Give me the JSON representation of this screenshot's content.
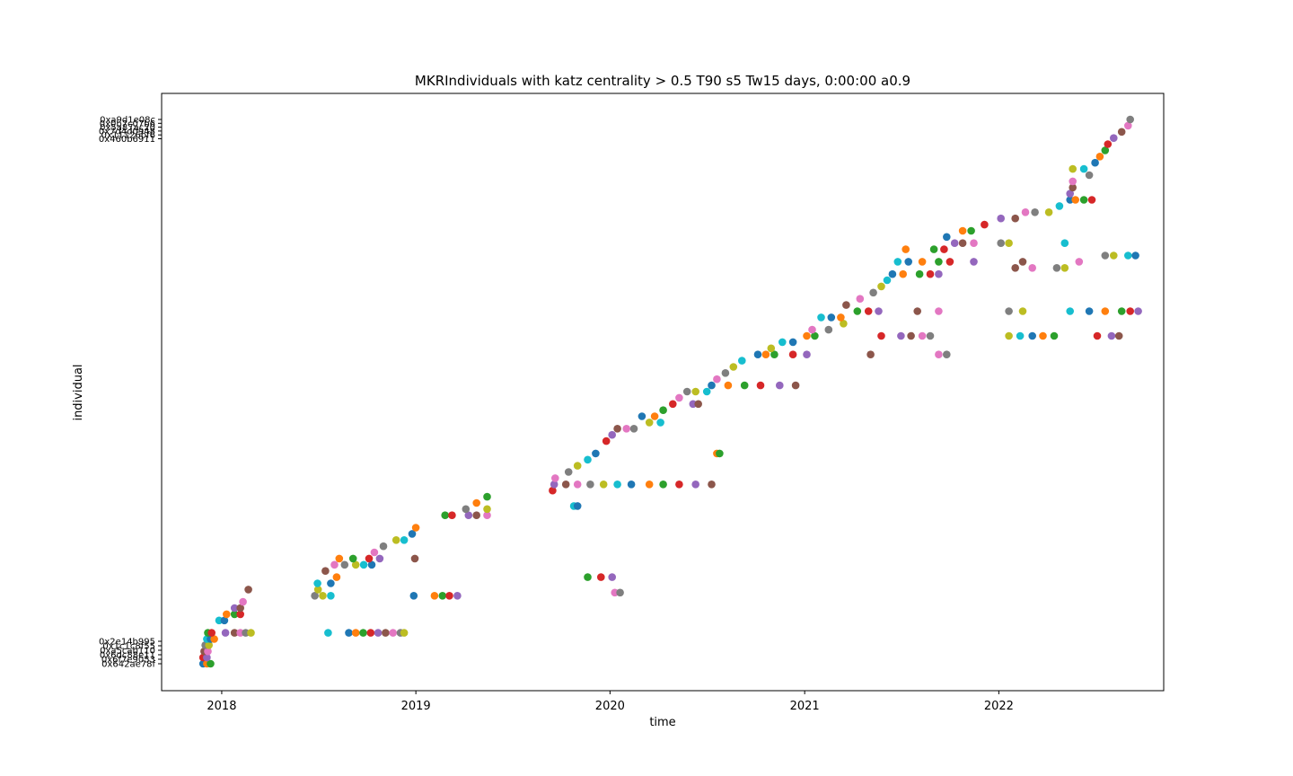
{
  "chart_data": {
    "type": "scatter",
    "title": "MKRIndividuals with katz centrality > 0.5 T90 s5 Tw15 days, 0:00:00 a0.9",
    "xlabel": "time",
    "ylabel": "individual",
    "xlim": [
      "2017-09-10",
      "2022-11-07"
    ],
    "x_ticks": [
      "2018",
      "2019",
      "2020",
      "2021",
      "2022"
    ],
    "grid": false,
    "legend": "none",
    "marker": "circle",
    "palette": [
      "#1f77b4",
      "#ff7f0e",
      "#2ca02c",
      "#d62728",
      "#9467bd",
      "#8c564b",
      "#e377c2",
      "#7f7f7f",
      "#bcbd22",
      "#17becf"
    ],
    "y_categories_bottom": [
      "0x642ae78f",
      "0x6f7e9053",
      "0x6dc88e11",
      "0xa5cab110",
      "0x1c1c8f55",
      "0x2e14b995"
    ],
    "y_categories_top": [
      "0xa9d1e08c",
      "0x0b7c07b6",
      "0x5a87ac20",
      "0x7d4d0948",
      "0x11126bf6",
      "0x460b6911"
    ],
    "points": [
      [
        "2017-11-27",
        0
      ],
      [
        "2017-12-04",
        0
      ],
      [
        "2017-12-11",
        0
      ],
      [
        "2017-11-27",
        1
      ],
      [
        "2017-12-04",
        1
      ],
      [
        "2017-11-29",
        2
      ],
      [
        "2017-12-06",
        2
      ],
      [
        "2017-12-01",
        3
      ],
      [
        "2017-12-08",
        3
      ],
      [
        "2017-12-04",
        4
      ],
      [
        "2017-12-11",
        4
      ],
      [
        "2017-12-18",
        4
      ],
      [
        "2017-12-06",
        5
      ],
      [
        "2017-12-13",
        5
      ],
      [
        "2018-01-08",
        5
      ],
      [
        "2018-01-25",
        5
      ],
      [
        "2018-02-05",
        5
      ],
      [
        "2018-02-15",
        5
      ],
      [
        "2018-02-25",
        5
      ],
      [
        "2018-07-20",
        5
      ],
      [
        "2018-08-28",
        5
      ],
      [
        "2018-09-10",
        5
      ],
      [
        "2018-09-24",
        5
      ],
      [
        "2018-10-08",
        5
      ],
      [
        "2018-10-22",
        5
      ],
      [
        "2018-11-05",
        5
      ],
      [
        "2018-11-19",
        5
      ],
      [
        "2018-12-03",
        5
      ],
      [
        "2018-12-10",
        5
      ],
      [
        "2017-12-27",
        7
      ],
      [
        "2018-01-06",
        7
      ],
      [
        "2018-01-10",
        8
      ],
      [
        "2018-01-25",
        8
      ],
      [
        "2018-02-05",
        8
      ],
      [
        "2018-01-25",
        9
      ],
      [
        "2018-02-05",
        9
      ],
      [
        "2018-02-10",
        10
      ],
      [
        "2018-06-25",
        11
      ],
      [
        "2018-07-10",
        11
      ],
      [
        "2018-07-25",
        11
      ],
      [
        "2018-12-28",
        11
      ],
      [
        "2019-02-05",
        11
      ],
      [
        "2019-02-20",
        11
      ],
      [
        "2019-03-05",
        11
      ],
      [
        "2019-03-20",
        11
      ],
      [
        "2018-02-20",
        12
      ],
      [
        "2020-01-10",
        11.5
      ],
      [
        "2020-01-20",
        11.5
      ],
      [
        "2018-07-01",
        12
      ],
      [
        "2018-06-30",
        13
      ],
      [
        "2018-07-25",
        13
      ],
      [
        "2018-08-05",
        14
      ],
      [
        "2019-11-20",
        14
      ],
      [
        "2019-12-15",
        14
      ],
      [
        "2020-01-05",
        14
      ],
      [
        "2018-07-15",
        15
      ],
      [
        "2018-08-01",
        16
      ],
      [
        "2018-08-20",
        16
      ],
      [
        "2018-09-10",
        16
      ],
      [
        "2018-09-25",
        16
      ],
      [
        "2018-10-10",
        16
      ],
      [
        "2018-08-10",
        17
      ],
      [
        "2018-09-05",
        17
      ],
      [
        "2018-10-05",
        17
      ],
      [
        "2018-10-25",
        17
      ],
      [
        "2018-12-30",
        17
      ],
      [
        "2018-10-15",
        18
      ],
      [
        "2018-11-01",
        19
      ],
      [
        "2018-11-25",
        20
      ],
      [
        "2018-12-10",
        20
      ],
      [
        "2018-12-25",
        21
      ],
      [
        "2019-01-01",
        22
      ],
      [
        "2019-02-25",
        24
      ],
      [
        "2019-03-10",
        24
      ],
      [
        "2019-04-10",
        24
      ],
      [
        "2019-04-25",
        24
      ],
      [
        "2019-05-15",
        24
      ],
      [
        "2019-04-05",
        25
      ],
      [
        "2019-05-15",
        25
      ],
      [
        "2019-10-25",
        25.5
      ],
      [
        "2019-11-01",
        25.5
      ],
      [
        "2019-04-25",
        26
      ],
      [
        "2019-05-15",
        27
      ],
      [
        "2019-09-15",
        28
      ],
      [
        "2019-09-18",
        29
      ],
      [
        "2019-10-10",
        29
      ],
      [
        "2019-11-01",
        29
      ],
      [
        "2019-11-25",
        29
      ],
      [
        "2019-12-20",
        29
      ],
      [
        "2020-01-15",
        29
      ],
      [
        "2020-02-10",
        29
      ],
      [
        "2020-03-15",
        29
      ],
      [
        "2020-04-10",
        29
      ],
      [
        "2020-05-10",
        29
      ],
      [
        "2020-06-10",
        29
      ],
      [
        "2020-07-10",
        29
      ],
      [
        "2019-09-20",
        30
      ],
      [
        "2019-10-15",
        31
      ],
      [
        "2019-11-01",
        32
      ],
      [
        "2019-11-20",
        33
      ],
      [
        "2019-12-05",
        34
      ],
      [
        "2020-07-20",
        34
      ],
      [
        "2020-07-25",
        34
      ],
      [
        "2019-12-25",
        36
      ],
      [
        "2020-01-05",
        37
      ],
      [
        "2020-01-15",
        38
      ],
      [
        "2020-02-01",
        38
      ],
      [
        "2020-02-15",
        38
      ],
      [
        "2020-03-15",
        39
      ],
      [
        "2020-04-05",
        39
      ],
      [
        "2020-03-01",
        40
      ],
      [
        "2020-03-25",
        40
      ],
      [
        "2020-04-10",
        41
      ],
      [
        "2020-04-28",
        42
      ],
      [
        "2020-06-05",
        42
      ],
      [
        "2020-06-15",
        42
      ],
      [
        "2020-05-10",
        43
      ],
      [
        "2020-05-25",
        44
      ],
      [
        "2020-06-10",
        44
      ],
      [
        "2020-07-01",
        44
      ],
      [
        "2020-07-10",
        45
      ],
      [
        "2020-08-10",
        45
      ],
      [
        "2020-09-10",
        45
      ],
      [
        "2020-10-10",
        45
      ],
      [
        "2020-11-15",
        45
      ],
      [
        "2020-12-15",
        45
      ],
      [
        "2020-07-20",
        46
      ],
      [
        "2020-08-05",
        47
      ],
      [
        "2020-08-20",
        48
      ],
      [
        "2020-09-05",
        49
      ],
      [
        "2020-10-05",
        50
      ],
      [
        "2020-10-20",
        50
      ],
      [
        "2020-11-05",
        50
      ],
      [
        "2020-12-10",
        50
      ],
      [
        "2021-01-05",
        50
      ],
      [
        "2021-05-05",
        50
      ],
      [
        "2021-09-10",
        50
      ],
      [
        "2021-09-25",
        50
      ],
      [
        "2020-10-30",
        51
      ],
      [
        "2020-11-20",
        52
      ],
      [
        "2020-12-10",
        52
      ],
      [
        "2021-01-05",
        53
      ],
      [
        "2021-01-20",
        53
      ],
      [
        "2021-05-25",
        53
      ],
      [
        "2021-07-01",
        53
      ],
      [
        "2021-07-20",
        53
      ],
      [
        "2021-08-10",
        53
      ],
      [
        "2021-08-25",
        53
      ],
      [
        "2022-01-20",
        53
      ],
      [
        "2022-02-10",
        53
      ],
      [
        "2022-03-05",
        53
      ],
      [
        "2022-03-25",
        53
      ],
      [
        "2022-04-15",
        53
      ],
      [
        "2022-07-05",
        53
      ],
      [
        "2022-08-01",
        53
      ],
      [
        "2022-08-15",
        53
      ],
      [
        "2021-01-15",
        54
      ],
      [
        "2021-02-15",
        54
      ],
      [
        "2021-03-15",
        55
      ],
      [
        "2021-02-01",
        56
      ],
      [
        "2021-02-20",
        56
      ],
      [
        "2021-03-10",
        56
      ],
      [
        "2021-04-10",
        57
      ],
      [
        "2021-05-01",
        57
      ],
      [
        "2021-05-20",
        57
      ],
      [
        "2021-08-01",
        57
      ],
      [
        "2021-09-10",
        57
      ],
      [
        "2022-01-20",
        57
      ],
      [
        "2022-02-15",
        57
      ],
      [
        "2022-05-15",
        57
      ],
      [
        "2022-06-20",
        57
      ],
      [
        "2022-07-20",
        57
      ],
      [
        "2022-08-20",
        57
      ],
      [
        "2022-09-05",
        57
      ],
      [
        "2022-09-20",
        57
      ],
      [
        "2021-03-20",
        58
      ],
      [
        "2021-04-15",
        59
      ],
      [
        "2021-05-10",
        60
      ],
      [
        "2021-05-25",
        61
      ],
      [
        "2021-06-05",
        62
      ],
      [
        "2021-06-15",
        63
      ],
      [
        "2021-07-05",
        63
      ],
      [
        "2021-08-05",
        63
      ],
      [
        "2021-08-25",
        63
      ],
      [
        "2021-09-10",
        63
      ],
      [
        "2022-02-01",
        64
      ],
      [
        "2022-03-05",
        64
      ],
      [
        "2022-04-20",
        64
      ],
      [
        "2022-05-05",
        64
      ],
      [
        "2021-06-25",
        65
      ],
      [
        "2021-07-15",
        65
      ],
      [
        "2021-08-10",
        65
      ],
      [
        "2021-09-10",
        65
      ],
      [
        "2021-10-01",
        65
      ],
      [
        "2021-11-15",
        65
      ],
      [
        "2022-02-15",
        65
      ],
      [
        "2022-06-01",
        65
      ],
      [
        "2022-07-20",
        66
      ],
      [
        "2022-08-05",
        66
      ],
      [
        "2022-09-01",
        66
      ],
      [
        "2022-09-15",
        66
      ],
      [
        "2021-07-10",
        67
      ],
      [
        "2021-09-01",
        67
      ],
      [
        "2021-09-20",
        67
      ],
      [
        "2021-10-10",
        68
      ],
      [
        "2021-10-25",
        68
      ],
      [
        "2021-11-15",
        68
      ],
      [
        "2022-01-05",
        68
      ],
      [
        "2022-01-20",
        68
      ],
      [
        "2022-05-05",
        68
      ],
      [
        "2021-09-25",
        69
      ],
      [
        "2021-10-25",
        70
      ],
      [
        "2021-11-10",
        70
      ],
      [
        "2021-12-05",
        71
      ],
      [
        "2022-01-05",
        72
      ],
      [
        "2022-02-01",
        72
      ],
      [
        "2022-02-20",
        73
      ],
      [
        "2022-03-10",
        73
      ],
      [
        "2022-04-05",
        73
      ],
      [
        "2022-04-25",
        74
      ],
      [
        "2022-05-15",
        75
      ],
      [
        "2022-05-25",
        75
      ],
      [
        "2022-06-10",
        75
      ],
      [
        "2022-06-25",
        75
      ],
      [
        "2022-05-15",
        76
      ],
      [
        "2022-05-20",
        77
      ],
      [
        "2022-05-20",
        78
      ],
      [
        "2022-06-20",
        79
      ],
      [
        "2022-05-20",
        80
      ],
      [
        "2022-06-10",
        80
      ],
      [
        "2022-07-01",
        81
      ],
      [
        "2022-07-10",
        82
      ],
      [
        "2022-07-20",
        83
      ],
      [
        "2022-07-25",
        84
      ],
      [
        "2022-08-05",
        85
      ],
      [
        "2022-08-20",
        86
      ],
      [
        "2022-09-01",
        87
      ],
      [
        "2022-09-05",
        88
      ]
    ]
  }
}
